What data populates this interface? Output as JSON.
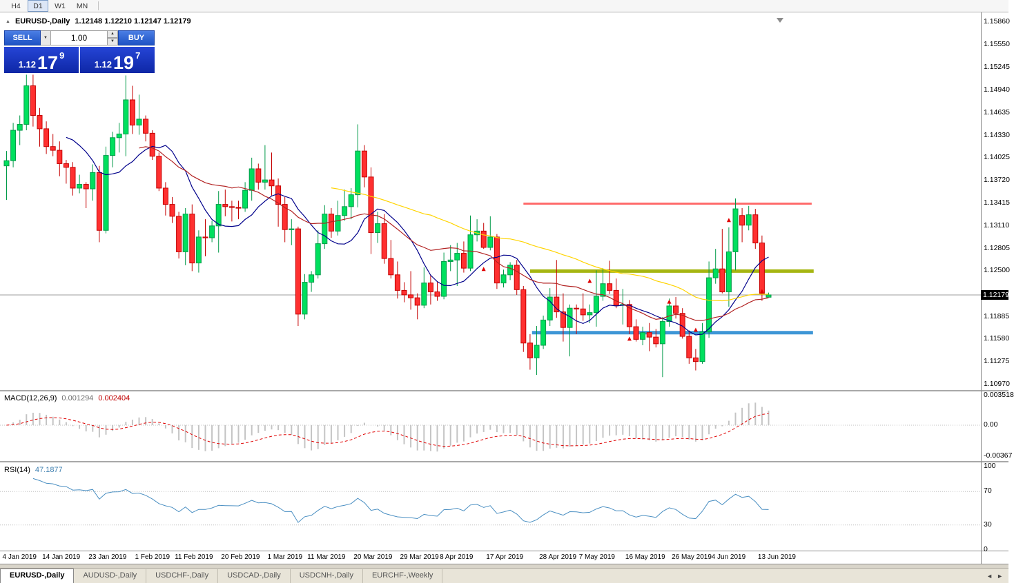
{
  "toolbar": {
    "timeframes": [
      "H4",
      "D1",
      "W1",
      "MN"
    ],
    "active": "D1"
  },
  "icons": {
    "collapse": "▲",
    "dropdown": "▼",
    "spin_up": "▲",
    "spin_down": "▼"
  },
  "chart_header": {
    "symbol": "EURUSD-,Daily",
    "ohlc": "1.12148 1.12210 1.12147 1.12179"
  },
  "trade_panel": {
    "sell_label": "SELL",
    "buy_label": "BUY",
    "volume": "1.00",
    "sell_price": {
      "prefix": "1.12",
      "big": "17",
      "sup": "9"
    },
    "buy_price": {
      "prefix": "1.12",
      "big": "19",
      "sup": "7"
    }
  },
  "price_scale": {
    "labels": [
      "1.15860",
      "1.15550",
      "1.15245",
      "1.14940",
      "1.14635",
      "1.14330",
      "1.14025",
      "1.13720",
      "1.13415",
      "1.13110",
      "1.12805",
      "1.12500",
      "1.11885",
      "1.11580",
      "1.11275",
      "1.10970"
    ],
    "current": "1.12179"
  },
  "macd": {
    "name": "MACD(12,26,9)",
    "main": "0.001294",
    "signal": "0.002404",
    "scale": [
      "0.003518",
      "0.00",
      "-0.00367"
    ]
  },
  "rsi": {
    "name": "RSI(14)",
    "value": "47.1877",
    "scale": [
      "100",
      "70",
      "30",
      "0"
    ]
  },
  "date_axis": [
    {
      "label": "4 Jan 2019",
      "bar": 0
    },
    {
      "label": "14 Jan 2019",
      "bar": 6
    },
    {
      "label": "23 Jan 2019",
      "bar": 13
    },
    {
      "label": "1 Feb 2019",
      "bar": 20
    },
    {
      "label": "11 Feb 2019",
      "bar": 26
    },
    {
      "label": "20 Feb 2019",
      "bar": 33
    },
    {
      "label": "1 Mar 2019",
      "bar": 40
    },
    {
      "label": "11 Mar 2019",
      "bar": 46
    },
    {
      "label": "20 Mar 2019",
      "bar": 53
    },
    {
      "label": "29 Mar 2019",
      "bar": 60
    },
    {
      "label": "8 Apr 2019",
      "bar": 66
    },
    {
      "label": "17 Apr 2019",
      "bar": 73
    },
    {
      "label": "28 Apr 2019",
      "bar": 81
    },
    {
      "label": "7 May 2019",
      "bar": 87
    },
    {
      "label": "16 May 2019",
      "bar": 94
    },
    {
      "label": "26 May 2019",
      "bar": 101
    },
    {
      "label": "4 Jun 2019",
      "bar": 107
    },
    {
      "label": "13 Jun 2019",
      "bar": 114
    }
  ],
  "tabs": {
    "items": [
      "EURUSD-,Daily",
      "AUDUSD-,Daily",
      "USDCHF-,Daily",
      "USDCAD-,Daily",
      "USDCNH-,Daily",
      "EURCHF-,Weekly"
    ],
    "active_index": 0,
    "scroll_left": "◄",
    "scroll_right": "►"
  },
  "chart_data": {
    "type": "candlestick",
    "symbol": "EURUSD-",
    "period": "Daily",
    "title": "EURUSD-,Daily 1.12148 1.12210 1.12147 1.12179",
    "y_axis": {
      "min": 1.1097,
      "max": 1.1586
    },
    "current_price": 1.12179,
    "style": {
      "up_color": "#00E05E",
      "up_border": "#009A48",
      "down_color": "#FF3030",
      "down_border": "#C40000"
    },
    "ohlc": [
      [
        1.1392,
        1.1412,
        1.1346,
        1.1399
      ],
      [
        1.1399,
        1.145,
        1.139,
        1.144
      ],
      [
        1.144,
        1.146,
        1.142,
        1.1448
      ],
      [
        1.1448,
        1.1515,
        1.144,
        1.15
      ],
      [
        1.15,
        1.1515,
        1.1445,
        1.146
      ],
      [
        1.146,
        1.147,
        1.1418,
        1.1442
      ],
      [
        1.1442,
        1.1452,
        1.1408,
        1.1418
      ],
      [
        1.1418,
        1.1435,
        1.1405,
        1.1413
      ],
      [
        1.1413,
        1.1425,
        1.1378,
        1.1395
      ],
      [
        1.1395,
        1.14,
        1.1368,
        1.139
      ],
      [
        1.139,
        1.1397,
        1.1352,
        1.1362
      ],
      [
        1.1362,
        1.138,
        1.1355,
        1.1367
      ],
      [
        1.1367,
        1.137,
        1.1335,
        1.1361
      ],
      [
        1.1361,
        1.1394,
        1.1345,
        1.1383
      ],
      [
        1.1383,
        1.1392,
        1.1289,
        1.1305
      ],
      [
        1.1305,
        1.1418,
        1.1301,
        1.1406
      ],
      [
        1.1406,
        1.1438,
        1.139,
        1.143
      ],
      [
        1.143,
        1.145,
        1.141,
        1.1435
      ],
      [
        1.1435,
        1.1514,
        1.1405,
        1.1481
      ],
      [
        1.1481,
        1.15,
        1.1435,
        1.1447
      ],
      [
        1.1447,
        1.1488,
        1.1434,
        1.1455
      ],
      [
        1.1455,
        1.146,
        1.1425,
        1.1436
      ],
      [
        1.1436,
        1.144,
        1.14,
        1.1405
      ],
      [
        1.1405,
        1.141,
        1.1358,
        1.1362
      ],
      [
        1.1362,
        1.137,
        1.1325,
        1.134
      ],
      [
        1.134,
        1.135,
        1.1315,
        1.1324
      ],
      [
        1.1324,
        1.133,
        1.1267,
        1.1276
      ],
      [
        1.1276,
        1.1335,
        1.1258,
        1.1327
      ],
      [
        1.1327,
        1.134,
        1.125,
        1.1261
      ],
      [
        1.1261,
        1.1305,
        1.1248,
        1.1296
      ],
      [
        1.1296,
        1.132,
        1.127,
        1.1295
      ],
      [
        1.1295,
        1.1318,
        1.1289,
        1.1311
      ],
      [
        1.1311,
        1.1358,
        1.1275,
        1.134
      ],
      [
        1.134,
        1.136,
        1.1324,
        1.1337
      ],
      [
        1.1337,
        1.1345,
        1.1317,
        1.1336
      ],
      [
        1.1336,
        1.1345,
        1.132,
        1.1335
      ],
      [
        1.1335,
        1.137,
        1.133,
        1.1359
      ],
      [
        1.1359,
        1.1403,
        1.1345,
        1.1388
      ],
      [
        1.1388,
        1.1395,
        1.136,
        1.137
      ],
      [
        1.137,
        1.142,
        1.136,
        1.1373
      ],
      [
        1.1373,
        1.141,
        1.1352,
        1.1365
      ],
      [
        1.1365,
        1.1375,
        1.131,
        1.134
      ],
      [
        1.134,
        1.135,
        1.1289,
        1.1306
      ],
      [
        1.1306,
        1.132,
        1.1285,
        1.1307
      ],
      [
        1.1307,
        1.131,
        1.1176,
        1.1192
      ],
      [
        1.1192,
        1.1246,
        1.1185,
        1.1235
      ],
      [
        1.1235,
        1.125,
        1.1222,
        1.1245
      ],
      [
        1.1245,
        1.1305,
        1.124,
        1.1287
      ],
      [
        1.1287,
        1.1339,
        1.128,
        1.1327
      ],
      [
        1.1327,
        1.1335,
        1.1295,
        1.1304
      ],
      [
        1.1304,
        1.1345,
        1.1298,
        1.1325
      ],
      [
        1.1325,
        1.136,
        1.1318,
        1.1337
      ],
      [
        1.1337,
        1.1362,
        1.132,
        1.1353
      ],
      [
        1.1353,
        1.1448,
        1.1336,
        1.1412
      ],
      [
        1.1412,
        1.142,
        1.1363,
        1.1377
      ],
      [
        1.1377,
        1.139,
        1.1273,
        1.1302
      ],
      [
        1.1302,
        1.133,
        1.1288,
        1.1314
      ],
      [
        1.1314,
        1.1327,
        1.126,
        1.1267
      ],
      [
        1.1267,
        1.1292,
        1.124,
        1.1245
      ],
      [
        1.1245,
        1.1263,
        1.1213,
        1.1224
      ],
      [
        1.1224,
        1.1235,
        1.1208,
        1.1218
      ],
      [
        1.1218,
        1.125,
        1.1198,
        1.1214
      ],
      [
        1.1214,
        1.122,
        1.1185,
        1.1204
      ],
      [
        1.1204,
        1.1255,
        1.12,
        1.1234
      ],
      [
        1.1234,
        1.1245,
        1.1205,
        1.1222
      ],
      [
        1.1222,
        1.1235,
        1.121,
        1.1216
      ],
      [
        1.1216,
        1.1275,
        1.1212,
        1.1263
      ],
      [
        1.1263,
        1.1285,
        1.125,
        1.1265
      ],
      [
        1.1265,
        1.1288,
        1.123,
        1.1274
      ],
      [
        1.1274,
        1.129,
        1.1248,
        1.1254
      ],
      [
        1.1254,
        1.1325,
        1.125,
        1.1299
      ],
      [
        1.1299,
        1.132,
        1.129,
        1.1304
      ],
      [
        1.1304,
        1.1315,
        1.128,
        1.1282
      ],
      [
        1.1282,
        1.1324,
        1.1278,
        1.1296
      ],
      [
        1.1296,
        1.13,
        1.1226,
        1.1234
      ],
      [
        1.1234,
        1.1252,
        1.1228,
        1.1245
      ],
      [
        1.1245,
        1.1262,
        1.1238,
        1.1258
      ],
      [
        1.1258,
        1.1265,
        1.1218,
        1.1225
      ],
      [
        1.1225,
        1.123,
        1.1141,
        1.1153
      ],
      [
        1.1153,
        1.1165,
        1.1117,
        1.1133
      ],
      [
        1.1133,
        1.1176,
        1.111,
        1.115
      ],
      [
        1.115,
        1.119,
        1.1145,
        1.1184
      ],
      [
        1.1184,
        1.1227,
        1.1176,
        1.1215
      ],
      [
        1.1215,
        1.1265,
        1.1187,
        1.1195
      ],
      [
        1.1195,
        1.122,
        1.1155,
        1.1174
      ],
      [
        1.1174,
        1.1205,
        1.1135,
        1.12
      ],
      [
        1.12,
        1.1205,
        1.1165,
        1.1199
      ],
      [
        1.1199,
        1.122,
        1.1183,
        1.1191
      ],
      [
        1.1191,
        1.1205,
        1.118,
        1.1194
      ],
      [
        1.1194,
        1.1251,
        1.1175,
        1.1216
      ],
      [
        1.1216,
        1.1254,
        1.121,
        1.1233
      ],
      [
        1.1233,
        1.1264,
        1.1219,
        1.1224
      ],
      [
        1.1224,
        1.124,
        1.12,
        1.1204
      ],
      [
        1.1204,
        1.1226,
        1.1178,
        1.1205
      ],
      [
        1.1205,
        1.1211,
        1.1165,
        1.1175
      ],
      [
        1.1175,
        1.1185,
        1.1155,
        1.1158
      ],
      [
        1.1158,
        1.1175,
        1.115,
        1.1167
      ],
      [
        1.1167,
        1.118,
        1.1142,
        1.1161
      ],
      [
        1.1161,
        1.1172,
        1.1147,
        1.1152
      ],
      [
        1.1152,
        1.1188,
        1.1107,
        1.1182
      ],
      [
        1.1182,
        1.1213,
        1.1175,
        1.1203
      ],
      [
        1.1203,
        1.1215,
        1.1186,
        1.1193
      ],
      [
        1.1193,
        1.12,
        1.1159,
        1.1162
      ],
      [
        1.1162,
        1.117,
        1.1125,
        1.1133
      ],
      [
        1.1133,
        1.1145,
        1.1116,
        1.1128
      ],
      [
        1.1128,
        1.118,
        1.1125,
        1.1168
      ],
      [
        1.1168,
        1.1263,
        1.116,
        1.1241
      ],
      [
        1.1241,
        1.128,
        1.1233,
        1.1253
      ],
      [
        1.1253,
        1.1307,
        1.122,
        1.1222
      ],
      [
        1.1222,
        1.1309,
        1.1202,
        1.1276
      ],
      [
        1.1276,
        1.1348,
        1.1251,
        1.1334
      ],
      [
        1.1325,
        1.1335,
        1.1289,
        1.1312
      ],
      [
        1.1312,
        1.1338,
        1.1305,
        1.1326
      ],
      [
        1.1326,
        1.1334,
        1.128,
        1.1288
      ],
      [
        1.1288,
        1.1298,
        1.121,
        1.122
      ],
      [
        1.12148,
        1.1221,
        1.12147,
        1.12179
      ]
    ],
    "levels": [
      {
        "price": 1.1341,
        "color": "#FF6A6A",
        "width": 3,
        "bar_start": 78,
        "bar_end": 121.5
      },
      {
        "price": 1.125,
        "color": "#A6B612",
        "width": 5,
        "bar_start": 79,
        "bar_end": 121.8
      },
      {
        "price": 1.1167,
        "color": "#3E96D6",
        "width": 5,
        "bar_start": 79.3,
        "bar_end": 121.7
      }
    ],
    "moving_averages": [
      {
        "period": 10,
        "color": "#00008B"
      },
      {
        "period": 21,
        "color": "#B22222"
      },
      {
        "period": 50,
        "color": "#FFD400"
      }
    ],
    "macd": {
      "fast": 12,
      "slow": 26,
      "signal_period": 9,
      "histogram_color": "#C4C4C4",
      "signal_color": "#E00000",
      "axis_max": 0.003518,
      "axis_min": -0.00367
    },
    "rsi": {
      "period": 14,
      "color": "#4A8FC2",
      "levels": [
        70,
        30
      ]
    },
    "markers": [
      {
        "bar": 72,
        "price": 1.1252
      },
      {
        "bar": 88,
        "price": 1.1236
      },
      {
        "bar": 94,
        "price": 1.1158
      },
      {
        "bar": 100,
        "price": 1.1208
      },
      {
        "bar": 104,
        "price": 1.117
      },
      {
        "bar": 109,
        "price": 1.1318
      },
      {
        "bar": 114,
        "price": 1.1222
      }
    ],
    "marker_color": "#E00000"
  }
}
